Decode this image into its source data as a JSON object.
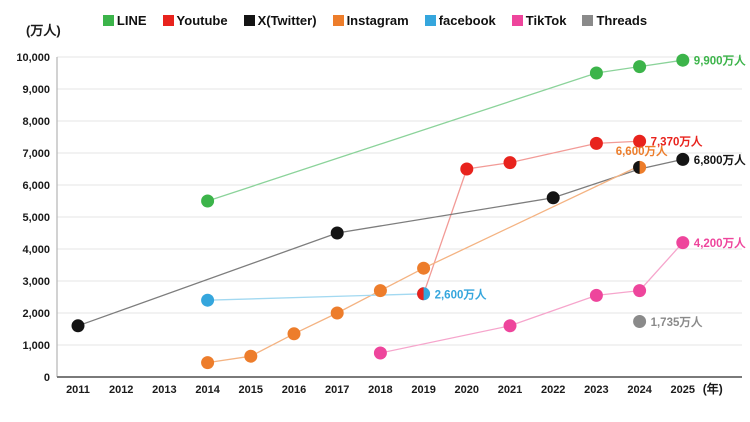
{
  "y_unit_label": "(万人)",
  "x_unit_label": "(年)",
  "legend": [
    {
      "label": "LINE",
      "color": "#3cb44a"
    },
    {
      "label": "Youtube",
      "color": "#e8231d"
    },
    {
      "label": "X(Twitter)",
      "color": "#141414"
    },
    {
      "label": "Instagram",
      "color": "#ed7d2b"
    },
    {
      "label": "facebook",
      "color": "#35a6dd"
    },
    {
      "label": "TikTok",
      "color": "#ee459c"
    },
    {
      "label": "Threads",
      "color": "#8a8a8a"
    }
  ],
  "chart_data": {
    "type": "line",
    "title": "",
    "ylabel": "(万人)",
    "xlabel": "(年)",
    "x_ticks": [
      2011,
      2012,
      2013,
      2014,
      2015,
      2016,
      2017,
      2018,
      2019,
      2020,
      2021,
      2022,
      2023,
      2024,
      2025
    ],
    "y_ticks": [
      0,
      1000,
      2000,
      3000,
      4000,
      5000,
      6000,
      7000,
      8000,
      9000,
      10000
    ],
    "ylim": [
      0,
      10000
    ],
    "grid": "horizontal",
    "legend_position": "top",
    "series": [
      {
        "name": "LINE",
        "dot_color": "#3cb44a",
        "line_color": "#8bd39a",
        "points": [
          [
            2014,
            5500
          ],
          [
            2023,
            9500
          ],
          [
            2024,
            9700
          ],
          [
            2025,
            9900
          ]
        ],
        "hide_dot_years": [],
        "end_label": {
          "text": "9,900万人",
          "color": "#3cb44a",
          "placement": "right"
        }
      },
      {
        "name": "Youtube",
        "dot_color": "#e8231d",
        "line_color": "#f29b97",
        "points": [
          [
            2019,
            2600
          ],
          [
            2020,
            6500
          ],
          [
            2021,
            6700
          ],
          [
            2023,
            7300
          ],
          [
            2024,
            7370
          ]
        ],
        "hide_dot_years": [
          2019
        ],
        "end_label": {
          "text": "7,370万人",
          "color": "#e8231d",
          "placement": "right"
        }
      },
      {
        "name": "X(Twitter)",
        "dot_color": "#141414",
        "line_color": "#7d7d7d",
        "points": [
          [
            2011,
            1600
          ],
          [
            2017,
            4500
          ],
          [
            2022,
            5600
          ],
          [
            2024,
            6500
          ],
          [
            2025,
            6800
          ]
        ],
        "hide_dot_years": [
          2024
        ],
        "end_label": {
          "text": "6,800万人",
          "color": "#141414",
          "placement": "right"
        }
      },
      {
        "name": "Instagram",
        "dot_color": "#ed7d2b",
        "line_color": "#f4b382",
        "points": [
          [
            2014,
            450
          ],
          [
            2015,
            650
          ],
          [
            2016,
            1350
          ],
          [
            2017,
            2000
          ],
          [
            2018,
            2700
          ],
          [
            2019,
            3400
          ],
          [
            2024,
            6600
          ]
        ],
        "hide_dot_years": [
          2024
        ],
        "end_label": {
          "text": "6,600万人",
          "color": "#ed7d2b",
          "placement": "above"
        }
      },
      {
        "name": "facebook",
        "dot_color": "#35a6dd",
        "line_color": "#a3d9f1",
        "points": [
          [
            2014,
            2400
          ],
          [
            2019,
            2600
          ]
        ],
        "hide_dot_years": [
          2019
        ],
        "end_label": {
          "text": "2,600万人",
          "color": "#35a6dd",
          "placement": "right"
        }
      },
      {
        "name": "TikTok",
        "dot_color": "#ee459c",
        "line_color": "#f6a5cc",
        "points": [
          [
            2018,
            750
          ],
          [
            2021,
            1600
          ],
          [
            2023,
            2550
          ],
          [
            2024,
            2700
          ],
          [
            2025,
            4200
          ]
        ],
        "hide_dot_years": [],
        "end_label": {
          "text": "4,200万人",
          "color": "#ee459c",
          "placement": "right"
        }
      },
      {
        "name": "Threads",
        "dot_color": "#8a8a8a",
        "line_color": "#8a8a8a",
        "points": [
          [
            2024,
            1735
          ]
        ],
        "hide_dot_years": [],
        "end_label": {
          "text": "1,735万人",
          "color": "#8a8a8a",
          "placement": "right"
        }
      }
    ],
    "overlap_markers": [
      {
        "year": 2019,
        "value": 2600,
        "left_color": "#e8231d",
        "right_color": "#35a6dd"
      },
      {
        "year": 2024,
        "value": 6550,
        "left_color": "#141414",
        "right_color": "#ed7d2b"
      }
    ]
  }
}
